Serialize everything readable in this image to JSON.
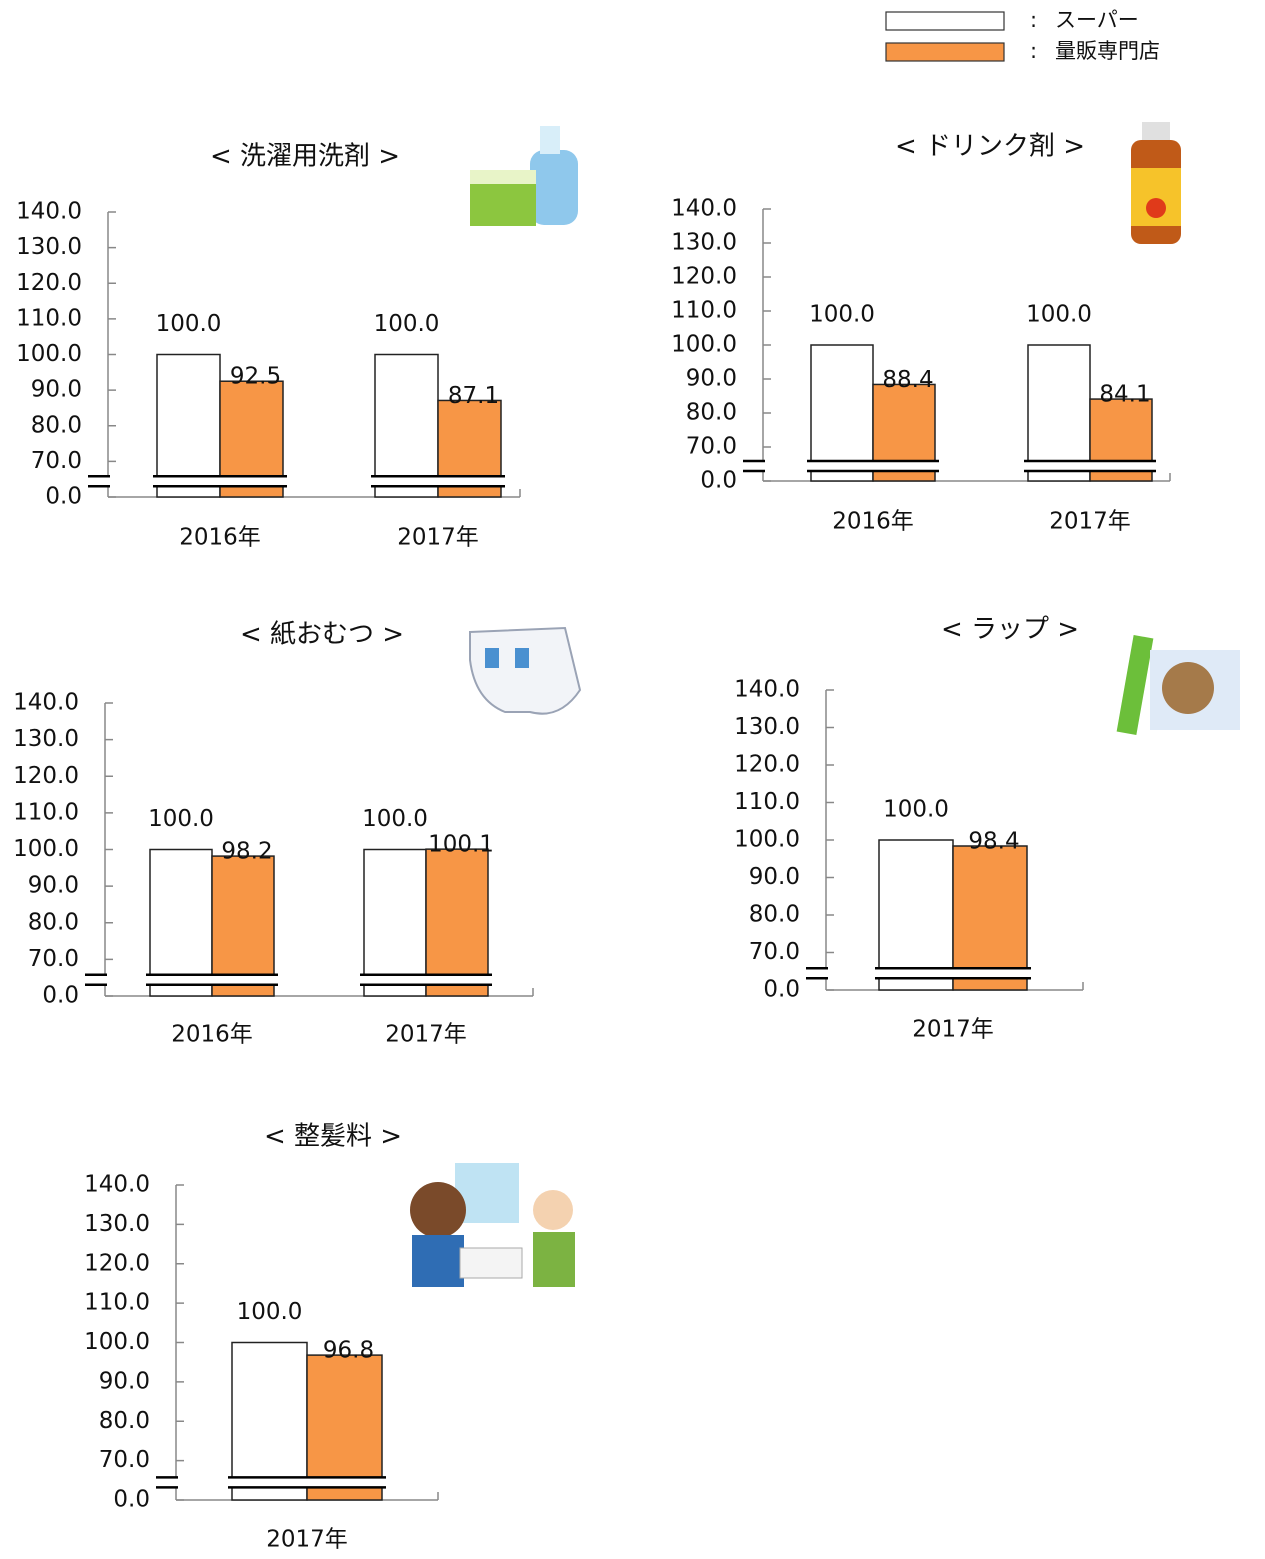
{
  "legend": [
    {
      "name": "スーパー",
      "color": "#ffffff"
    },
    {
      "name": "量販専門店",
      "color": "#f79646"
    }
  ],
  "chart_data": [
    {
      "type": "bar",
      "title": "< 洗濯用洗剤 >",
      "categories": [
        "2016年",
        "2017年"
      ],
      "series": [
        {
          "values": [
            100,
            100
          ],
          "value_labels": [
            "100.0",
            "100.0"
          ]
        },
        {
          "values": [
            92.5,
            87.1
          ],
          "value_labels": [
            "92.5",
            "87.1"
          ]
        }
      ],
      "ylim": [
        0,
        140
      ],
      "broken_axis": true,
      "yticks": [
        {
          "value": 0,
          "label": "0.0"
        },
        {
          "value": 70,
          "label": "70.0"
        },
        {
          "value": 80,
          "label": "80.0"
        },
        {
          "value": 90,
          "label": "90.0"
        },
        {
          "value": 100,
          "label": "100.0"
        },
        {
          "value": 110,
          "label": "110.0"
        },
        {
          "value": 120,
          "label": "120.0"
        },
        {
          "value": 130,
          "label": "130.0"
        },
        {
          "value": 140,
          "label": "140.0"
        }
      ]
    },
    {
      "type": "bar",
      "title": "< ドリンク剤 >",
      "categories": [
        "2016年",
        "2017年"
      ],
      "series": [
        {
          "values": [
            100,
            100
          ],
          "value_labels": [
            "100.0",
            "100.0"
          ]
        },
        {
          "values": [
            88.4,
            84.1
          ],
          "value_labels": [
            "88.4",
            "84.1"
          ]
        }
      ],
      "ylim": [
        0,
        140
      ],
      "broken_axis": true,
      "yticks": [
        {
          "value": 0,
          "label": "0.0"
        },
        {
          "value": 70,
          "label": "70.0"
        },
        {
          "value": 80,
          "label": "80.0"
        },
        {
          "value": 90,
          "label": "90.0"
        },
        {
          "value": 100,
          "label": "100.0"
        },
        {
          "value": 110,
          "label": "110.0"
        },
        {
          "value": 120,
          "label": "120.0"
        },
        {
          "value": 130,
          "label": "130.0"
        },
        {
          "value": 140,
          "label": "140.0"
        }
      ]
    },
    {
      "type": "bar",
      "title": "< 紙おむつ >",
      "categories": [
        "2016年",
        "2017年"
      ],
      "series": [
        {
          "values": [
            100,
            100
          ],
          "value_labels": [
            "100.0",
            "100.0"
          ]
        },
        {
          "values": [
            98.2,
            100.1
          ],
          "value_labels": [
            "98.2",
            "100.1"
          ]
        }
      ],
      "ylim": [
        0,
        140
      ],
      "broken_axis": true,
      "yticks": [
        {
          "value": 0,
          "label": "0.0"
        },
        {
          "value": 70,
          "label": "70.0"
        },
        {
          "value": 80,
          "label": "80.0"
        },
        {
          "value": 90,
          "label": "90.0"
        },
        {
          "value": 100,
          "label": "100.0"
        },
        {
          "value": 110,
          "label": "110.0"
        },
        {
          "value": 120,
          "label": "120.0"
        },
        {
          "value": 130,
          "label": "130.0"
        },
        {
          "value": 140,
          "label": "140.0"
        }
      ]
    },
    {
      "type": "bar",
      "title": "< ラップ >",
      "categories": [
        "2017年"
      ],
      "series": [
        {
          "values": [
            100
          ],
          "value_labels": [
            "100.0"
          ]
        },
        {
          "values": [
            98.4
          ],
          "value_labels": [
            "98.4"
          ]
        }
      ],
      "ylim": [
        0,
        140
      ],
      "broken_axis": true,
      "yticks": [
        {
          "value": 0,
          "label": "0.0"
        },
        {
          "value": 70,
          "label": "70.0"
        },
        {
          "value": 80,
          "label": "80.0"
        },
        {
          "value": 90,
          "label": "90.0"
        },
        {
          "value": 100,
          "label": "100.0"
        },
        {
          "value": 110,
          "label": "110.0"
        },
        {
          "value": 120,
          "label": "120.0"
        },
        {
          "value": 130,
          "label": "130.0"
        },
        {
          "value": 140,
          "label": "140.0"
        }
      ]
    },
    {
      "type": "bar",
      "title": "< 整髪料 >",
      "categories": [
        "2017年"
      ],
      "series": [
        {
          "values": [
            100
          ],
          "value_labels": [
            "100.0"
          ]
        },
        {
          "values": [
            96.8
          ],
          "value_labels": [
            "96.8"
          ]
        }
      ],
      "ylim": [
        0,
        140
      ],
      "broken_axis": true,
      "yticks": [
        {
          "value": 0,
          "label": "0.0"
        },
        {
          "value": 70,
          "label": "70.0"
        },
        {
          "value": 80,
          "label": "80.0"
        },
        {
          "value": 90,
          "label": "90.0"
        },
        {
          "value": 100,
          "label": "100.0"
        },
        {
          "value": 110,
          "label": "110.0"
        },
        {
          "value": 120,
          "label": "120.0"
        },
        {
          "value": 130,
          "label": "130.0"
        },
        {
          "value": 140,
          "label": "140.0"
        }
      ]
    }
  ]
}
